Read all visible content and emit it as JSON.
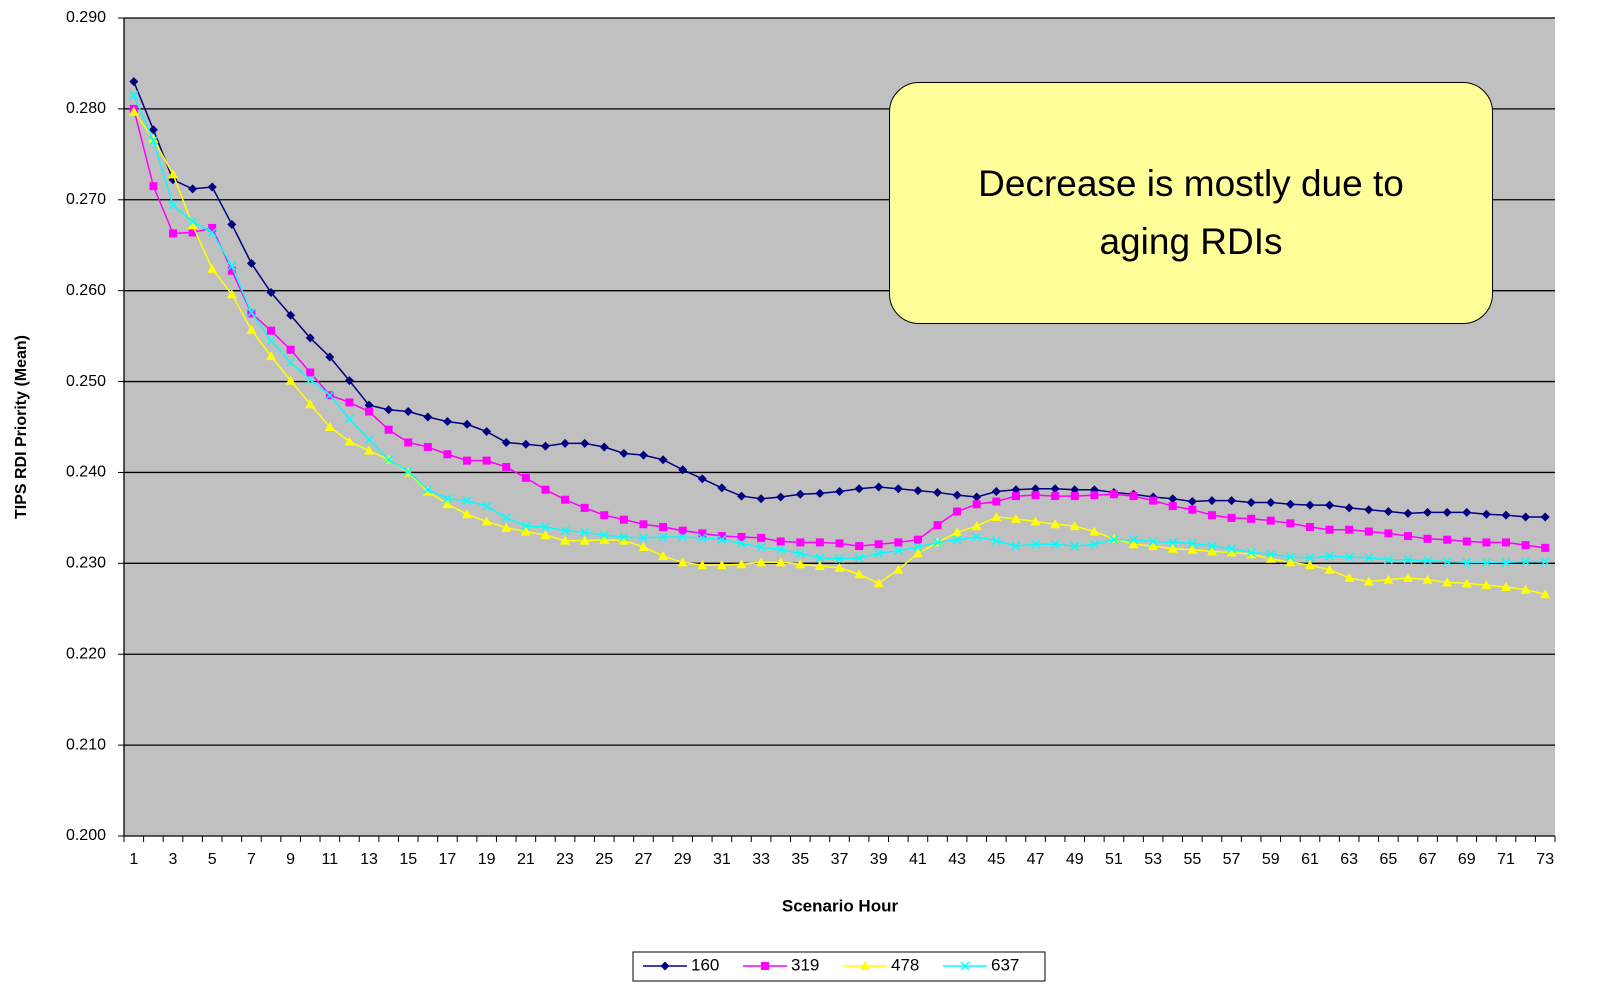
{
  "chart_data": {
    "type": "line",
    "x_label": "Scenario Hour",
    "y_label": "TIPS RDI Priority (Mean)",
    "annotation": "Decrease is mostly due to aging RDIs",
    "categories": [
      1,
      null,
      3,
      null,
      5,
      null,
      7,
      null,
      9,
      null,
      11,
      null,
      13,
      null,
      15,
      null,
      17,
      null,
      19,
      null,
      21,
      null,
      23,
      null,
      25,
      null,
      27,
      null,
      29,
      null,
      31,
      null,
      33,
      null,
      35,
      null,
      37,
      null,
      39,
      null,
      41,
      null,
      43,
      null,
      45,
      null,
      47,
      null,
      49,
      null,
      51,
      null,
      53,
      null,
      55,
      null,
      57,
      null,
      59,
      null,
      61,
      null,
      63,
      null,
      65,
      null,
      67,
      null,
      69,
      null,
      71,
      null,
      73
    ],
    "ylim": [
      0.2,
      0.29
    ],
    "yticks": [
      {
        "value": 0.2,
        "label": "0.200"
      },
      {
        "value": 0.21,
        "label": "0.210"
      },
      {
        "value": 0.22,
        "label": "0.220"
      },
      {
        "value": 0.23,
        "label": "0.230"
      },
      {
        "value": 0.24,
        "label": "0.240"
      },
      {
        "value": 0.25,
        "label": "0.250"
      },
      {
        "value": 0.26,
        "label": "0.260"
      },
      {
        "value": 0.27,
        "label": "0.270"
      },
      {
        "value": 0.28,
        "label": "0.280"
      },
      {
        "value": 0.29,
        "label": "0.290"
      }
    ],
    "grid": true,
    "legend": "bottom",
    "series": [
      {
        "name": "160",
        "color": "#000080",
        "marker": "diamond",
        "values": [
          0.283,
          0.2777,
          0.2722,
          0.2712,
          0.2714,
          0.2673,
          0.263,
          0.2598,
          0.2573,
          0.2548,
          0.2527,
          0.2501,
          0.2474,
          0.2469,
          0.2467,
          0.2461,
          0.2456,
          0.2453,
          0.2445,
          0.2433,
          0.2431,
          0.2429,
          0.2432,
          0.2432,
          0.2428,
          0.2421,
          0.2419,
          0.2414,
          0.2403,
          0.2393,
          0.2383,
          0.2374,
          0.2371,
          0.2373,
          0.2376,
          0.2377,
          0.2379,
          0.2382,
          0.2384,
          0.2382,
          0.238,
          0.2378,
          0.2375,
          0.2373,
          0.2379,
          0.2381,
          0.2382,
          0.2382,
          0.2381,
          0.2381,
          0.2378,
          0.2376,
          0.2373,
          0.2371,
          0.2368,
          0.2369,
          0.2369,
          0.2367,
          0.2367,
          0.2365,
          0.2364,
          0.2364,
          0.2361,
          0.2359,
          0.2357,
          0.2355,
          0.2356,
          0.2356,
          0.2356,
          0.2354,
          0.2353,
          0.2351,
          0.2351
        ]
      },
      {
        "name": "319",
        "color": "#ff00ff",
        "marker": "square",
        "values": [
          0.28,
          0.2715,
          0.2663,
          0.2664,
          0.2669,
          0.2622,
          0.2575,
          0.2556,
          0.2535,
          0.251,
          0.2485,
          0.2477,
          0.2467,
          0.2447,
          0.2433,
          0.2428,
          0.242,
          0.2413,
          0.2413,
          0.2406,
          0.2394,
          0.2381,
          0.237,
          0.2361,
          0.2353,
          0.2348,
          0.2343,
          0.234,
          0.2336,
          0.2333,
          0.233,
          0.2329,
          0.2328,
          0.2324,
          0.2323,
          0.2323,
          0.2322,
          0.2319,
          0.2321,
          0.2323,
          0.2326,
          0.2342,
          0.2357,
          0.2365,
          0.2368,
          0.2374,
          0.2375,
          0.2374,
          0.2374,
          0.2375,
          0.2376,
          0.2374,
          0.2369,
          0.2363,
          0.2359,
          0.2353,
          0.235,
          0.2349,
          0.2347,
          0.2344,
          0.234,
          0.2337,
          0.2337,
          0.2335,
          0.2333,
          0.233,
          0.2327,
          0.2326,
          0.2324,
          0.2323,
          0.2323,
          0.232,
          0.2317
        ]
      },
      {
        "name": "478",
        "color": "#ffff00",
        "marker": "triangle",
        "values": [
          0.2797,
          0.2767,
          0.2728,
          0.2672,
          0.2624,
          0.2596,
          0.2557,
          0.2528,
          0.2501,
          0.2475,
          0.245,
          0.2434,
          0.2424,
          0.2414,
          0.24,
          0.2379,
          0.2365,
          0.2354,
          0.2346,
          0.2339,
          0.2335,
          0.2331,
          0.2325,
          0.2325,
          0.2326,
          0.2325,
          0.2318,
          0.2308,
          0.2301,
          0.2298,
          0.2298,
          0.2299,
          0.2301,
          0.2301,
          0.2299,
          0.2297,
          0.2295,
          0.2288,
          0.2278,
          0.2293,
          0.2311,
          0.2323,
          0.2334,
          0.2341,
          0.2351,
          0.2349,
          0.2346,
          0.2343,
          0.2341,
          0.2335,
          0.2327,
          0.2321,
          0.2319,
          0.2316,
          0.2315,
          0.2313,
          0.2312,
          0.231,
          0.2305,
          0.2301,
          0.2298,
          0.2293,
          0.2284,
          0.228,
          0.2282,
          0.2284,
          0.2282,
          0.2279,
          0.2278,
          0.2276,
          0.2274,
          0.2271,
          0.2266
        ]
      },
      {
        "name": "637",
        "color": "#00ffff",
        "marker": "x",
        "values": [
          0.2815,
          0.2765,
          0.2694,
          0.2676,
          0.2664,
          0.2627,
          0.2576,
          0.2545,
          0.2521,
          0.2502,
          0.2485,
          0.2459,
          0.2436,
          0.2414,
          0.2401,
          0.2381,
          0.2371,
          0.2369,
          0.2363,
          0.235,
          0.2341,
          0.234,
          0.2336,
          0.2334,
          0.2331,
          0.2329,
          0.2328,
          0.2329,
          0.2329,
          0.2328,
          0.2326,
          0.2322,
          0.2318,
          0.2315,
          0.2311,
          0.2306,
          0.2305,
          0.2306,
          0.2311,
          0.2314,
          0.2318,
          0.2323,
          0.2326,
          0.2329,
          0.2325,
          0.2319,
          0.2321,
          0.2321,
          0.2319,
          0.2321,
          0.2326,
          0.2326,
          0.2324,
          0.2323,
          0.2322,
          0.2319,
          0.2316,
          0.2312,
          0.231,
          0.2307,
          0.2306,
          0.2308,
          0.2307,
          0.2306,
          0.2304,
          0.2304,
          0.2303,
          0.2302,
          0.2301,
          0.2301,
          0.2301,
          0.2302,
          0.2302
        ]
      }
    ]
  }
}
